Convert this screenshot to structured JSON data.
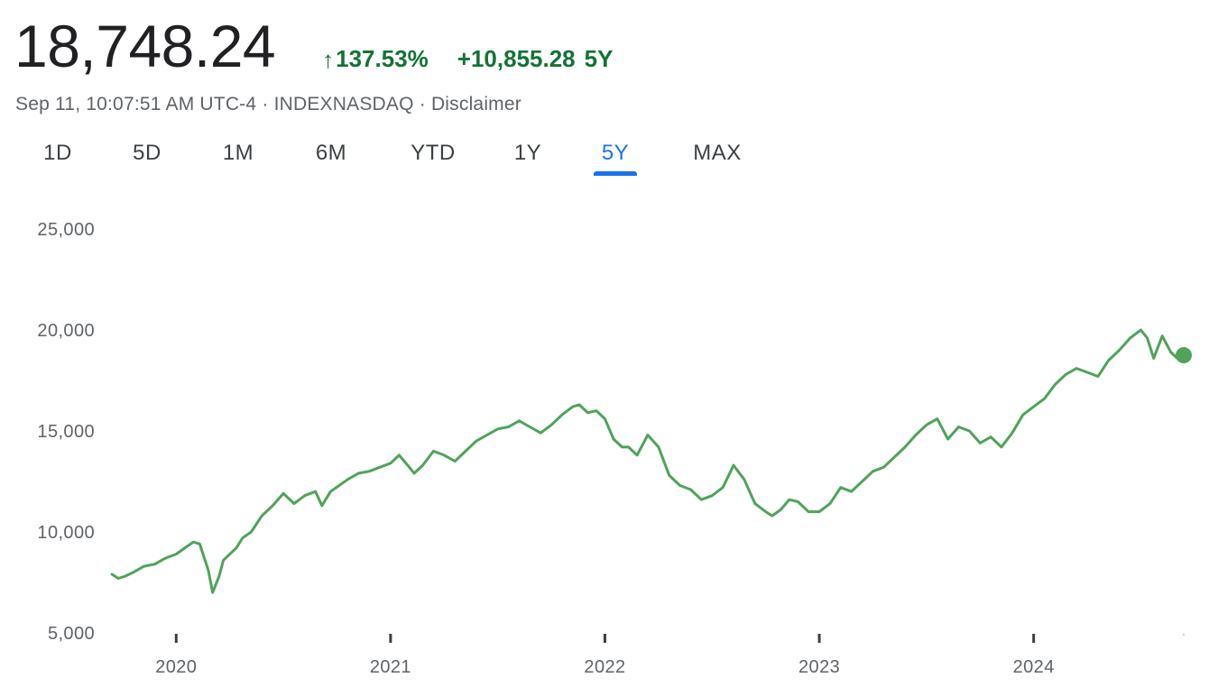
{
  "quote": {
    "price": "18,748.24",
    "change_arrow": "↑",
    "change_pct": "137.53%",
    "change_abs": "+10,855.28",
    "change_period": "5Y",
    "timestamp": "Sep 11, 10:07:51 AM UTC-4",
    "separator": "·",
    "exchange": "INDEXNASDAQ",
    "disclaimer": "Disclaimer",
    "color_up": "#137333"
  },
  "tabs": [
    {
      "label": "1D",
      "active": false
    },
    {
      "label": "5D",
      "active": false
    },
    {
      "label": "1M",
      "active": false
    },
    {
      "label": "6M",
      "active": false
    },
    {
      "label": "YTD",
      "active": false
    },
    {
      "label": "1Y",
      "active": false
    },
    {
      "label": "5Y",
      "active": true
    },
    {
      "label": "MAX",
      "active": false
    }
  ],
  "chart_data": {
    "type": "line",
    "title": "",
    "xlabel": "",
    "ylabel": "",
    "grid": false,
    "line_color": "#4fa35a",
    "ylim": [
      5000,
      25000
    ],
    "xlim": [
      2019.7,
      2024.7
    ],
    "y_ticks": [
      {
        "value": 25000,
        "label": "25,000"
      },
      {
        "value": 20000,
        "label": "20,000"
      },
      {
        "value": 15000,
        "label": "15,000"
      },
      {
        "value": 10000,
        "label": "10,000"
      },
      {
        "value": 5000,
        "label": "5,000"
      }
    ],
    "x_ticks": [
      {
        "value": 2020.0,
        "label": "2020"
      },
      {
        "value": 2021.0,
        "label": "2021"
      },
      {
        "value": 2022.0,
        "label": "2022"
      },
      {
        "value": 2023.0,
        "label": "2023"
      },
      {
        "value": 2024.0,
        "label": "2024"
      }
    ],
    "x": [
      2019.7,
      2019.73,
      2019.76,
      2019.8,
      2019.85,
      2019.9,
      2019.95,
      2020.0,
      2020.04,
      2020.08,
      2020.11,
      2020.15,
      2020.17,
      2020.2,
      2020.22,
      2020.25,
      2020.28,
      2020.31,
      2020.35,
      2020.4,
      2020.45,
      2020.5,
      2020.55,
      2020.6,
      2020.65,
      2020.68,
      2020.72,
      2020.76,
      2020.8,
      2020.85,
      2020.9,
      2020.95,
      2021.0,
      2021.04,
      2021.08,
      2021.11,
      2021.15,
      2021.2,
      2021.25,
      2021.3,
      2021.35,
      2021.4,
      2021.45,
      2021.5,
      2021.55,
      2021.6,
      2021.65,
      2021.7,
      2021.75,
      2021.8,
      2021.85,
      2021.88,
      2021.92,
      2021.96,
      2022.0,
      2022.04,
      2022.08,
      2022.11,
      2022.15,
      2022.2,
      2022.25,
      2022.3,
      2022.35,
      2022.4,
      2022.45,
      2022.5,
      2022.55,
      2022.6,
      2022.65,
      2022.7,
      2022.75,
      2022.78,
      2022.82,
      2022.86,
      2022.9,
      2022.95,
      2023.0,
      2023.05,
      2023.1,
      2023.15,
      2023.2,
      2023.25,
      2023.3,
      2023.35,
      2023.4,
      2023.45,
      2023.5,
      2023.55,
      2023.6,
      2023.65,
      2023.7,
      2023.75,
      2023.8,
      2023.85,
      2023.9,
      2023.95,
      2024.0,
      2024.05,
      2024.1,
      2024.15,
      2024.2,
      2024.25,
      2024.3,
      2024.35,
      2024.4,
      2024.45,
      2024.5,
      2024.53,
      2024.56,
      2024.6,
      2024.64,
      2024.67,
      2024.7
    ],
    "values": [
      7900,
      7700,
      7800,
      8000,
      8300,
      8400,
      8700,
      8900,
      9200,
      9500,
      9400,
      8100,
      7000,
      7800,
      8600,
      8900,
      9200,
      9700,
      10000,
      10800,
      11300,
      11900,
      11400,
      11800,
      12000,
      11300,
      12000,
      12300,
      12600,
      12900,
      13000,
      13200,
      13400,
      13800,
      13300,
      12900,
      13300,
      14000,
      13800,
      13500,
      14000,
      14500,
      14800,
      15100,
      15200,
      15500,
      15200,
      14900,
      15300,
      15800,
      16200,
      16300,
      15900,
      16000,
      15600,
      14600,
      14200,
      14200,
      13800,
      14800,
      14200,
      12800,
      12300,
      12100,
      11600,
      11800,
      12200,
      13300,
      12600,
      11400,
      11000,
      10800,
      11100,
      11600,
      11500,
      11000,
      11000,
      11400,
      12200,
      12000,
      12500,
      13000,
      13200,
      13700,
      14200,
      14800,
      15300,
      15600,
      14600,
      15200,
      15000,
      14400,
      14700,
      14200,
      14900,
      15800,
      16200,
      16600,
      17300,
      17800,
      18100,
      17900,
      17700,
      18500,
      19000,
      19600,
      20000,
      19600,
      18600,
      19700,
      18900,
      18600,
      18748
    ]
  }
}
